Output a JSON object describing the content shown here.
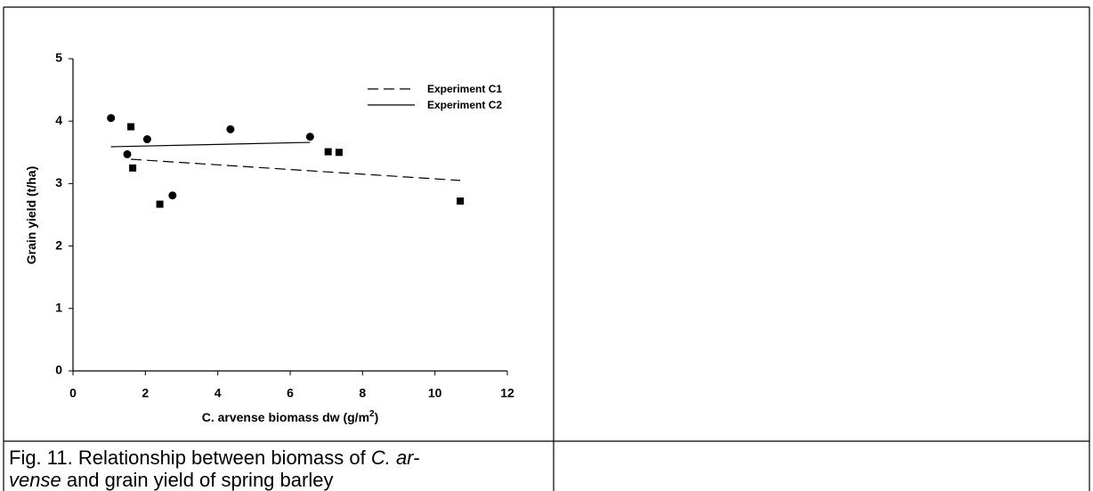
{
  "chart_data": {
    "type": "scatter",
    "x_label": [
      "C. arvense biomass dw (g/m",
      "2",
      ")"
    ],
    "y_label": "Grain yield (t/ha)",
    "xlim": [
      0,
      12
    ],
    "xticks": [
      0,
      2,
      4,
      6,
      8,
      10,
      12
    ],
    "ylim": [
      0,
      5
    ],
    "yticks": [
      0,
      1,
      2,
      3,
      4,
      5
    ],
    "legend": "top-right",
    "series": [
      {
        "name": "Experiment C1",
        "color": "#000000",
        "marker": "square",
        "line_style": "dashed",
        "x": [
          1.6,
          1.65,
          2.4,
          7.05,
          7.35,
          10.7
        ],
        "values": [
          3.91,
          3.25,
          2.67,
          3.51,
          3.5,
          2.72
        ],
        "trend": {
          "x": [
            1.6,
            10.7
          ],
          "values": [
            3.39,
            3.05
          ]
        }
      },
      {
        "name": "Experiment C2",
        "color": "#000000",
        "marker": "circle",
        "line_style": "solid",
        "x": [
          1.05,
          1.5,
          2.05,
          2.75,
          4.35,
          6.55
        ],
        "values": [
          4.05,
          3.47,
          3.71,
          2.81,
          3.87,
          3.75
        ],
        "trend": {
          "x": [
            1.05,
            6.55
          ],
          "values": [
            3.59,
            3.66
          ]
        }
      }
    ]
  },
  "caption": {
    "lines": [
      [
        {
          "text": "Fig. 11. Relationship between biomass of ",
          "italic": false
        },
        {
          "text": "C. ar-",
          "italic": true
        }
      ],
      [
        {
          "text": "vense",
          "italic": true
        },
        {
          "text": " and grain yield of spring barley",
          "italic": false
        }
      ]
    ]
  }
}
